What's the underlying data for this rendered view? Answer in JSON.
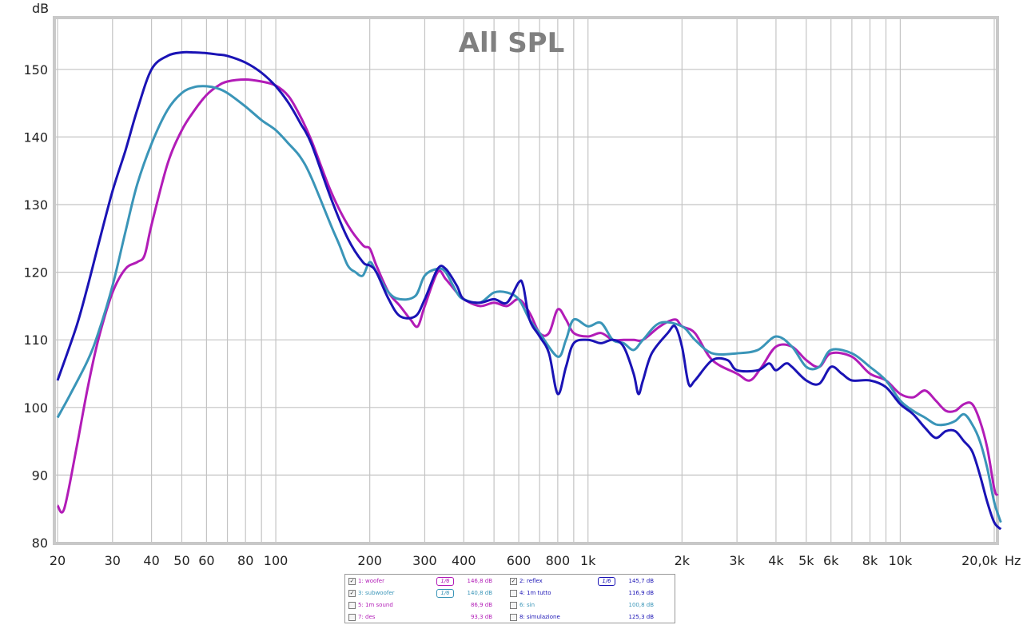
{
  "chart_data": {
    "type": "line",
    "title": "All SPL",
    "ylabel": "dB",
    "x_unit": "Hz",
    "x_scale": "log",
    "xlim": [
      20,
      20000
    ],
    "ylim": [
      80,
      157
    ],
    "grid": true,
    "x_ticks": [
      {
        "v": 20,
        "label": "20"
      },
      {
        "v": 30,
        "label": "30"
      },
      {
        "v": 40,
        "label": "40"
      },
      {
        "v": 50,
        "label": "50"
      },
      {
        "v": 60,
        "label": "60"
      },
      {
        "v": 80,
        "label": "80"
      },
      {
        "v": 100,
        "label": "100"
      },
      {
        "v": 200,
        "label": "200"
      },
      {
        "v": 300,
        "label": "300"
      },
      {
        "v": 400,
        "label": "400"
      },
      {
        "v": 600,
        "label": "600"
      },
      {
        "v": 800,
        "label": "800"
      },
      {
        "v": 1000,
        "label": "1k"
      },
      {
        "v": 2000,
        "label": "2k"
      },
      {
        "v": 3000,
        "label": "3k"
      },
      {
        "v": 4000,
        "label": "4k"
      },
      {
        "v": 5000,
        "label": "5k"
      },
      {
        "v": 6000,
        "label": "6k"
      },
      {
        "v": 8000,
        "label": "8k"
      },
      {
        "v": 10000,
        "label": "10k"
      },
      {
        "v": 20000,
        "label": "20,0k"
      }
    ],
    "x_unit_label": "Hz",
    "y_ticks": [
      {
        "v": 80,
        "label": "80"
      },
      {
        "v": 90,
        "label": "90"
      },
      {
        "v": 100,
        "label": "100"
      },
      {
        "v": 110,
        "label": "110"
      },
      {
        "v": 120,
        "label": "120"
      },
      {
        "v": 130,
        "label": "130"
      },
      {
        "v": 140,
        "label": "140"
      },
      {
        "v": 150,
        "label": "150"
      }
    ],
    "series": [
      {
        "name": "1: woofer",
        "color": "#b21cb7",
        "points": [
          [
            20,
            85.5
          ],
          [
            21,
            85
          ],
          [
            23,
            94
          ],
          [
            25,
            103
          ],
          [
            27,
            110
          ],
          [
            30,
            117
          ],
          [
            33,
            120.5
          ],
          [
            36,
            121.5
          ],
          [
            38,
            122.5
          ],
          [
            40,
            127
          ],
          [
            45,
            136
          ],
          [
            50,
            141
          ],
          [
            55,
            144
          ],
          [
            60,
            146.2
          ],
          [
            65,
            147.5
          ],
          [
            70,
            148.2
          ],
          [
            80,
            148.5
          ],
          [
            90,
            148.2
          ],
          [
            100,
            147.6
          ],
          [
            110,
            146
          ],
          [
            120,
            143
          ],
          [
            130,
            139.5
          ],
          [
            150,
            132
          ],
          [
            170,
            127
          ],
          [
            190,
            124
          ],
          [
            200,
            123.5
          ],
          [
            210,
            121
          ],
          [
            230,
            117
          ],
          [
            250,
            115
          ],
          [
            270,
            113
          ],
          [
            285,
            112
          ],
          [
            300,
            115
          ],
          [
            330,
            120
          ],
          [
            350,
            119
          ],
          [
            380,
            117
          ],
          [
            400,
            116
          ],
          [
            450,
            115
          ],
          [
            500,
            115.5
          ],
          [
            550,
            115
          ],
          [
            600,
            116
          ],
          [
            650,
            114
          ],
          [
            700,
            111
          ],
          [
            750,
            111
          ],
          [
            800,
            114.5
          ],
          [
            850,
            113
          ],
          [
            900,
            111
          ],
          [
            1000,
            110.5
          ],
          [
            1100,
            111
          ],
          [
            1200,
            110
          ],
          [
            1300,
            110
          ],
          [
            1400,
            110
          ],
          [
            1500,
            110
          ],
          [
            1700,
            112
          ],
          [
            1900,
            113
          ],
          [
            2000,
            112
          ],
          [
            2200,
            111
          ],
          [
            2500,
            107
          ],
          [
            3000,
            105
          ],
          [
            3300,
            104
          ],
          [
            3600,
            106
          ],
          [
            4000,
            109
          ],
          [
            4500,
            109
          ],
          [
            5000,
            107
          ],
          [
            5500,
            106
          ],
          [
            6000,
            108
          ],
          [
            7000,
            107.5
          ],
          [
            8000,
            105
          ],
          [
            9000,
            104
          ],
          [
            10000,
            102
          ],
          [
            11000,
            101.5
          ],
          [
            12000,
            102.5
          ],
          [
            13000,
            101
          ],
          [
            14000,
            99.5
          ],
          [
            15000,
            99.5
          ],
          [
            16000,
            100.5
          ],
          [
            17000,
            100.5
          ],
          [
            18000,
            98
          ],
          [
            19000,
            94
          ],
          [
            20000,
            88
          ],
          [
            20500,
            87
          ]
        ]
      },
      {
        "name": "3: subwoofer",
        "color": "#3a95b8",
        "points": [
          [
            20,
            98.5
          ],
          [
            22,
            102
          ],
          [
            25,
            107
          ],
          [
            27,
            111
          ],
          [
            30,
            118
          ],
          [
            33,
            126
          ],
          [
            36,
            133
          ],
          [
            40,
            139
          ],
          [
            45,
            144
          ],
          [
            50,
            146.5
          ],
          [
            55,
            147.4
          ],
          [
            60,
            147.5
          ],
          [
            65,
            147.2
          ],
          [
            70,
            146.5
          ],
          [
            80,
            144.5
          ],
          [
            90,
            142.5
          ],
          [
            100,
            141
          ],
          [
            110,
            139
          ],
          [
            120,
            137
          ],
          [
            130,
            134
          ],
          [
            150,
            127
          ],
          [
            160,
            124
          ],
          [
            170,
            121
          ],
          [
            180,
            120
          ],
          [
            190,
            119.5
          ],
          [
            200,
            121.5
          ],
          [
            210,
            120
          ],
          [
            230,
            117
          ],
          [
            250,
            116
          ],
          [
            280,
            116.5
          ],
          [
            300,
            119.5
          ],
          [
            330,
            120.5
          ],
          [
            350,
            120
          ],
          [
            380,
            117
          ],
          [
            400,
            116
          ],
          [
            450,
            115.5
          ],
          [
            500,
            117
          ],
          [
            550,
            117
          ],
          [
            600,
            116
          ],
          [
            650,
            113
          ],
          [
            700,
            111
          ],
          [
            800,
            107.5
          ],
          [
            850,
            110
          ],
          [
            900,
            113
          ],
          [
            1000,
            112
          ],
          [
            1100,
            112.5
          ],
          [
            1200,
            110
          ],
          [
            1300,
            109.5
          ],
          [
            1400,
            108.5
          ],
          [
            1500,
            110
          ],
          [
            1700,
            112.5
          ],
          [
            2000,
            112
          ],
          [
            2200,
            110
          ],
          [
            2500,
            108
          ],
          [
            3000,
            108
          ],
          [
            3500,
            108.5
          ],
          [
            4000,
            110.5
          ],
          [
            4500,
            109
          ],
          [
            5000,
            106
          ],
          [
            5500,
            106
          ],
          [
            6000,
            108.5
          ],
          [
            7000,
            108
          ],
          [
            8000,
            106
          ],
          [
            9000,
            104
          ],
          [
            10000,
            101
          ],
          [
            11000,
            99.5
          ],
          [
            12000,
            98.5
          ],
          [
            13000,
            97.5
          ],
          [
            14000,
            97.5
          ],
          [
            15000,
            98
          ],
          [
            16000,
            99
          ],
          [
            17000,
            97.5
          ],
          [
            18000,
            95
          ],
          [
            19000,
            91
          ],
          [
            20000,
            86
          ],
          [
            21000,
            83
          ]
        ]
      },
      {
        "name": "2: reflex",
        "color": "#1a13b5",
        "points": [
          [
            20,
            104
          ],
          [
            23,
            112
          ],
          [
            25,
            118
          ],
          [
            27,
            124
          ],
          [
            30,
            132
          ],
          [
            33,
            138
          ],
          [
            36,
            144
          ],
          [
            40,
            150
          ],
          [
            45,
            152
          ],
          [
            50,
            152.5
          ],
          [
            55,
            152.5
          ],
          [
            60,
            152.4
          ],
          [
            65,
            152.2
          ],
          [
            70,
            152
          ],
          [
            80,
            151
          ],
          [
            90,
            149.5
          ],
          [
            100,
            147.5
          ],
          [
            110,
            145
          ],
          [
            120,
            142
          ],
          [
            130,
            139
          ],
          [
            150,
            131
          ],
          [
            170,
            125
          ],
          [
            190,
            121.5
          ],
          [
            200,
            121
          ],
          [
            210,
            120
          ],
          [
            230,
            116
          ],
          [
            250,
            113.5
          ],
          [
            280,
            113.5
          ],
          [
            300,
            116
          ],
          [
            330,
            120.5
          ],
          [
            350,
            120.5
          ],
          [
            380,
            118
          ],
          [
            400,
            116
          ],
          [
            450,
            115.5
          ],
          [
            500,
            116
          ],
          [
            550,
            115.5
          ],
          [
            600,
            118.5
          ],
          [
            620,
            118
          ],
          [
            650,
            113
          ],
          [
            700,
            110.5
          ],
          [
            750,
            108
          ],
          [
            800,
            102
          ],
          [
            850,
            106
          ],
          [
            900,
            109.5
          ],
          [
            1000,
            110
          ],
          [
            1100,
            109.5
          ],
          [
            1200,
            110
          ],
          [
            1300,
            109
          ],
          [
            1400,
            105
          ],
          [
            1450,
            102
          ],
          [
            1500,
            104
          ],
          [
            1600,
            108
          ],
          [
            1800,
            111
          ],
          [
            1900,
            112
          ],
          [
            2000,
            109
          ],
          [
            2100,
            103.5
          ],
          [
            2200,
            104
          ],
          [
            2500,
            107
          ],
          [
            2800,
            107
          ],
          [
            3000,
            105.5
          ],
          [
            3500,
            105.5
          ],
          [
            3800,
            106.5
          ],
          [
            4000,
            105.5
          ],
          [
            4300,
            106.5
          ],
          [
            4500,
            106
          ],
          [
            5000,
            104
          ],
          [
            5500,
            103.5
          ],
          [
            6000,
            106
          ],
          [
            6500,
            105
          ],
          [
            7000,
            104
          ],
          [
            8000,
            104
          ],
          [
            9000,
            103
          ],
          [
            10000,
            100.5
          ],
          [
            11000,
            99
          ],
          [
            12000,
            97
          ],
          [
            13000,
            95.5
          ],
          [
            14000,
            96.5
          ],
          [
            15000,
            96.5
          ],
          [
            16000,
            95
          ],
          [
            17000,
            93.5
          ],
          [
            18000,
            90
          ],
          [
            19000,
            86
          ],
          [
            20000,
            83
          ],
          [
            21000,
            82
          ]
        ]
      }
    ]
  },
  "legend": {
    "items": [
      {
        "checked": true,
        "name": "1: woofer",
        "badge": "1/6",
        "value": "146,8 dB",
        "color": "#b21cb7"
      },
      {
        "checked": true,
        "name": "2: reflex",
        "badge": "1/6",
        "value": "145,7 dB",
        "color": "#1a13b5"
      },
      {
        "checked": true,
        "name": "3: subwoofer",
        "badge": "1/6",
        "value": "140,8 dB",
        "color": "#3a95b8"
      },
      {
        "checked": false,
        "name": "4: 1m tutto",
        "badge": "",
        "value": "116,9 dB",
        "color": "#1a13b5"
      },
      {
        "checked": false,
        "name": "5: 1m sound",
        "badge": "",
        "value": "86,9 dB",
        "color": "#b21cb7"
      },
      {
        "checked": false,
        "name": "6: sin",
        "badge": "",
        "value": "100,8 dB",
        "color": "#3a95b8"
      },
      {
        "checked": false,
        "name": "7: des",
        "badge": "",
        "value": "93,3 dB",
        "color": "#b21cb7"
      },
      {
        "checked": false,
        "name": "8: simulazione",
        "badge": "",
        "value": "125,3 dB",
        "color": "#1a13b5"
      }
    ]
  }
}
